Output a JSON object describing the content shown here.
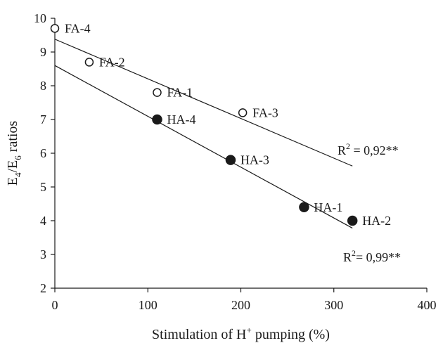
{
  "chart_data": {
    "type": "scatter",
    "title": "",
    "xlabel": {
      "main": "Stimulation of H",
      "sup": "+",
      "tail": " pumping (%)"
    },
    "ylabel": {
      "e1": "E",
      "s1": "4",
      "slash": "/E",
      "s2": "6",
      "tail": " ratios"
    },
    "xlim": [
      0,
      400
    ],
    "ylim": [
      2,
      10
    ],
    "xticks": [
      0,
      100,
      200,
      300,
      400
    ],
    "yticks": [
      2,
      3,
      4,
      5,
      6,
      7,
      8,
      9,
      10
    ],
    "grid": false,
    "series": [
      {
        "marker": "open-circle",
        "points": [
          {
            "label": "FA-4",
            "x": 0,
            "y": 9.7
          },
          {
            "label": "FA-2",
            "x": 37,
            "y": 8.7
          },
          {
            "label": "FA-1",
            "x": 110,
            "y": 7.8
          },
          {
            "label": "FA-3",
            "x": 202,
            "y": 7.2
          }
        ],
        "fit": {
          "x0": 0,
          "y0": 9.38,
          "x1": 320,
          "y1": 5.62
        },
        "r2": {
          "prefix": "R",
          "sup": "2",
          "value": " = 0,92**"
        }
      },
      {
        "marker": "filled-circle",
        "points": [
          {
            "label": "HA-4",
            "x": 110,
            "y": 7.0
          },
          {
            "label": "HA-3",
            "x": 189,
            "y": 5.8
          },
          {
            "label": "HA-1",
            "x": 268,
            "y": 4.4
          },
          {
            "label": "HA-2",
            "x": 320,
            "y": 4.0
          }
        ],
        "fit": {
          "x0": 0,
          "y0": 8.6,
          "x1": 320,
          "y1": 3.78
        },
        "r2": {
          "prefix": "R",
          "sup": "2",
          "value": "= 0,99**"
        }
      }
    ]
  }
}
